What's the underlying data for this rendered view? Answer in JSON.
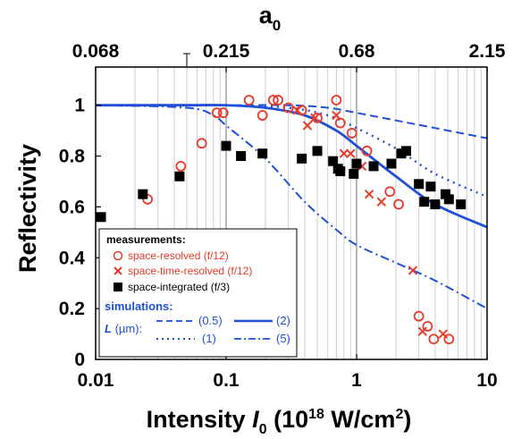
{
  "chart_data": {
    "type": "scatter",
    "x_scale": "log",
    "x_range": [
      0.01,
      10
    ],
    "y_range": [
      0,
      1.15
    ],
    "xlabel": {
      "main": "Intensity ",
      "var": "I",
      "sub": "0",
      "unit_pre": " (10",
      "sup": "18",
      "unit_mid": " W/cm",
      "sup2": "2",
      "unit_post": ")"
    },
    "ylabel": "Reflectivity",
    "top_axis_label": {
      "main": "a",
      "sub": "0"
    },
    "top_ticks": [
      {
        "label": "0.068",
        "intensity": 0.01
      },
      {
        "label": "0.215",
        "intensity": 0.1
      },
      {
        "label": "0.68",
        "intensity": 1
      },
      {
        "label": "2.15",
        "intensity": 10
      }
    ],
    "x_ticks": [
      {
        "label": "0.01",
        "value": 0.01
      },
      {
        "label": "0.1",
        "value": 0.1
      },
      {
        "label": "1",
        "value": 1
      },
      {
        "label": "10",
        "value": 10
      }
    ],
    "y_ticks": [
      {
        "label": "0",
        "value": 0
      },
      {
        "label": "0.2",
        "value": 0.2
      },
      {
        "label": "0.4",
        "value": 0.4
      },
      {
        "label": "0.6",
        "value": 0.6
      },
      {
        "label": "0.8",
        "value": 0.8
      },
      {
        "label": "1",
        "value": 1
      }
    ],
    "grid": "vertical minor log lines",
    "colors": {
      "measure": "#e8392a",
      "integrated": "#000000",
      "sim": "#1f4fd8"
    },
    "legend": {
      "placement": "bottom-left",
      "measurements_title": "measurements:",
      "measurements": [
        {
          "label": "space-resolved (f/12)",
          "marker": "open-circle"
        },
        {
          "label": "space-time-resolved (f/12)",
          "marker": "cross"
        },
        {
          "label": "space-integrated (f/3)",
          "marker": "filled-square"
        }
      ],
      "simulations_title": "simulations:",
      "L_prefix": "L",
      "L_unit": " (µm):",
      "simulations": [
        {
          "label": "(0.5)",
          "style": "dashed"
        },
        {
          "label": "(2)",
          "style": "solid"
        },
        {
          "label": "(1)",
          "style": "dotted"
        },
        {
          "label": "(5)",
          "style": "dash-dot"
        }
      ]
    },
    "series": [
      {
        "name": "space-resolved (f/12)",
        "marker": "open-circle",
        "points": [
          [
            0.025,
            0.63
          ],
          [
            0.045,
            0.76
          ],
          [
            0.065,
            0.85
          ],
          [
            0.085,
            0.97
          ],
          [
            0.095,
            0.97
          ],
          [
            0.15,
            1.02
          ],
          [
            0.19,
            0.96
          ],
          [
            0.23,
            1.02
          ],
          [
            0.25,
            1.02
          ],
          [
            0.3,
            0.99
          ],
          [
            0.38,
            0.98
          ],
          [
            0.5,
            0.95
          ],
          [
            0.7,
            1.02
          ],
          [
            0.75,
            0.93
          ],
          [
            0.92,
            0.89
          ],
          [
            1.2,
            0.82
          ],
          [
            1.8,
            0.66
          ],
          [
            2.1,
            0.61
          ],
          [
            3.0,
            0.17
          ],
          [
            3.5,
            0.13
          ],
          [
            3.9,
            0.08
          ],
          [
            5.1,
            0.08
          ]
        ]
      },
      {
        "name": "space-time-resolved (f/12)",
        "marker": "cross",
        "points": [
          [
            0.35,
            0.98
          ],
          [
            0.42,
            0.92
          ],
          [
            0.48,
            0.95
          ],
          [
            0.7,
            0.96
          ],
          [
            0.8,
            0.81
          ],
          [
            0.9,
            0.81
          ],
          [
            1.1,
            0.76
          ],
          [
            1.25,
            0.65
          ],
          [
            1.55,
            0.62
          ],
          [
            2.7,
            0.35
          ],
          [
            3.2,
            0.11
          ],
          [
            4.6,
            0.1
          ]
        ]
      },
      {
        "name": "space-integrated (f/3)",
        "marker": "filled-square",
        "points": [
          [
            0.011,
            0.56
          ],
          [
            0.023,
            0.65
          ],
          [
            0.044,
            0.72
          ],
          [
            0.1,
            0.84
          ],
          [
            0.13,
            0.8
          ],
          [
            0.19,
            0.81
          ],
          [
            0.38,
            0.79
          ],
          [
            0.5,
            0.82
          ],
          [
            0.66,
            0.78
          ],
          [
            0.72,
            0.75
          ],
          [
            0.75,
            0.74
          ],
          [
            0.95,
            0.73
          ],
          [
            1.0,
            0.77
          ],
          [
            1.35,
            0.76
          ],
          [
            1.85,
            0.77
          ],
          [
            2.2,
            0.81
          ],
          [
            2.4,
            0.82
          ],
          [
            3.0,
            0.69
          ],
          [
            3.3,
            0.62
          ],
          [
            3.7,
            0.68
          ],
          [
            4.0,
            0.61
          ],
          [
            4.8,
            0.65
          ],
          [
            5.1,
            0.63
          ],
          [
            6.3,
            0.61
          ]
        ]
      }
    ],
    "simulations": [
      {
        "name": "(0.5)",
        "style": "dashed",
        "points": [
          [
            0.01,
            1.0
          ],
          [
            0.1,
            1.0
          ],
          [
            0.3,
            1.0
          ],
          [
            0.6,
            0.99
          ],
          [
            1,
            0.97
          ],
          [
            2,
            0.94
          ],
          [
            4,
            0.91
          ],
          [
            10,
            0.87
          ]
        ]
      },
      {
        "name": "(1)",
        "style": "dotted",
        "points": [
          [
            0.01,
            1.0
          ],
          [
            0.1,
            1.0
          ],
          [
            0.3,
            0.99
          ],
          [
            0.6,
            0.96
          ],
          [
            1,
            0.91
          ],
          [
            2,
            0.83
          ],
          [
            4,
            0.73
          ],
          [
            10,
            0.64
          ]
        ]
      },
      {
        "name": "(2)",
        "style": "solid",
        "points": [
          [
            0.01,
            1.0
          ],
          [
            0.05,
            1.0
          ],
          [
            0.1,
            1.0
          ],
          [
            0.2,
            0.99
          ],
          [
            0.4,
            0.96
          ],
          [
            0.7,
            0.9
          ],
          [
            1,
            0.84
          ],
          [
            2,
            0.72
          ],
          [
            4,
            0.61
          ],
          [
            10,
            0.52
          ]
        ]
      },
      {
        "name": "(5)",
        "style": "dash-dot",
        "points": [
          [
            0.01,
            1.0
          ],
          [
            0.05,
            0.99
          ],
          [
            0.08,
            0.96
          ],
          [
            0.1,
            0.92
          ],
          [
            0.2,
            0.79
          ],
          [
            0.4,
            0.62
          ],
          [
            0.7,
            0.51
          ],
          [
            1,
            0.45
          ],
          [
            2,
            0.38
          ],
          [
            4,
            0.31
          ],
          [
            10,
            0.2
          ]
        ]
      }
    ]
  }
}
